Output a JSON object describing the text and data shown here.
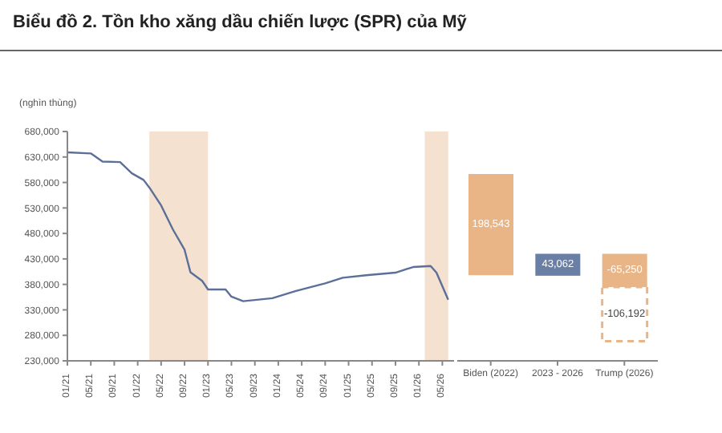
{
  "chart_data": [
    {
      "type": "line",
      "title": "Biểu đồ 2. Tồn kho xăng dầu chiến lược (SPR) của Mỹ",
      "ylabel": "(nghìn thùng)",
      "x": [
        "2021-01",
        "2021-05",
        "2021-07",
        "2021-10",
        "2021-12",
        "2022-02",
        "2022-03",
        "2022-05",
        "2022-07",
        "2022-09",
        "2022-10",
        "2022-12",
        "2023-01",
        "2023-04",
        "2023-05",
        "2023-07",
        "2023-12",
        "2024-04",
        "2024-09",
        "2024-12",
        "2025-04",
        "2025-09",
        "2025-12",
        "2026-03",
        "2026-04",
        "2026-06"
      ],
      "series": [
        {
          "color": "#5b6f98",
          "values": [
            639000,
            637000,
            621000,
            620000,
            598000,
            585000,
            570000,
            535000,
            488000,
            448000,
            404000,
            387000,
            370000,
            370000,
            356000,
            347000,
            353000,
            367000,
            382000,
            393000,
            398000,
            403000,
            414000,
            416000,
            403000,
            350000
          ]
        }
      ],
      "xlim": [
        "2021-01",
        "2026-07"
      ],
      "xticks": [
        {
          "value": "2021-01",
          "label": "01/21"
        },
        {
          "value": "2021-05",
          "label": "05/21"
        },
        {
          "value": "2021-09",
          "label": "09/21"
        },
        {
          "value": "2022-01",
          "label": "01/22"
        },
        {
          "value": "2022-05",
          "label": "05/22"
        },
        {
          "value": "2022-09",
          "label": "09/22"
        },
        {
          "value": "2023-01",
          "label": "01/23"
        },
        {
          "value": "2023-05",
          "label": "05/23"
        },
        {
          "value": "2023-09",
          "label": "09/23"
        },
        {
          "value": "2024-01",
          "label": "01/24"
        },
        {
          "value": "2024-05",
          "label": "05/24"
        },
        {
          "value": "2024-09",
          "label": "09/24"
        },
        {
          "value": "2025-01",
          "label": "01/25"
        },
        {
          "value": "2025-05",
          "label": "05/25"
        },
        {
          "value": "2025-09",
          "label": "09/25"
        },
        {
          "value": "2026-01",
          "label": "01/26"
        },
        {
          "value": "2026-05",
          "label": "05/26"
        }
      ],
      "ylim": [
        230000,
        680000
      ],
      "yticks": [
        {
          "value": 230000,
          "label": "230,000"
        },
        {
          "value": 280000,
          "label": "280,000"
        },
        {
          "value": 330000,
          "label": "330,000"
        },
        {
          "value": 380000,
          "label": "380,000"
        },
        {
          "value": 430000,
          "label": "430,000"
        },
        {
          "value": 480000,
          "label": "480,000"
        },
        {
          "value": 530000,
          "label": "530,000"
        },
        {
          "value": 580000,
          "label": "580,000"
        },
        {
          "value": 630000,
          "label": "630,000"
        },
        {
          "value": 680000,
          "label": "680,000"
        }
      ],
      "bands": [
        {
          "axis": "x",
          "from": "2022-03",
          "to": "2023-01",
          "color": "#f5e1d0"
        },
        {
          "axis": "x",
          "from": "2026-02",
          "to": "2026-06",
          "color": "#f5e1d0"
        }
      ],
      "grid": false,
      "legend": false,
      "marker": "none"
    },
    {
      "type": "bar",
      "categories": [
        "Biden (2022)",
        "2023 - 2026",
        "Trump (2026)"
      ],
      "series": [
        {
          "colors": [
            "#e9b486",
            "#6a7fa6",
            "#e9b486"
          ],
          "values": [
            198543,
            43062,
            -65250
          ],
          "base": [
            398000,
            397000,
            440000
          ],
          "value_labels": [
            "198,543",
            "43,062",
            "-65,250"
          ]
        },
        {
          "color": "#e9b486",
          "line_style": "dashed",
          "values": [
            null,
            null,
            -106192
          ],
          "base": [
            null,
            null,
            374750
          ],
          "value_labels": [
            null,
            null,
            "-106,192"
          ]
        }
      ],
      "ylim": [
        230000,
        680000
      ],
      "tick_labels": "x",
      "grid": false,
      "legend": false
    }
  ]
}
